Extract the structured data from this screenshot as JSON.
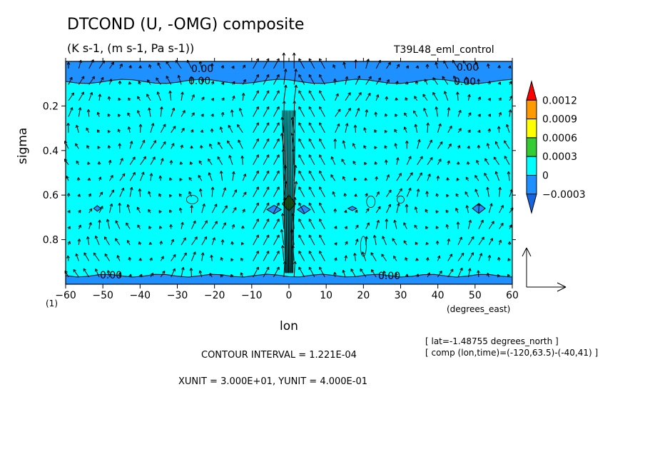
{
  "chart_data": {
    "type": "heatmap",
    "title": "DTCOND (U, -OMG) composite",
    "subtitle": "(K s-1, (m s-1, Pa s-1))",
    "run_name": "T39L48_eml_control",
    "xlabel": "lon",
    "x_unit": "(degrees_east)",
    "ylabel": "sigma",
    "y_unit": "(1)",
    "xlim": [
      -60,
      60
    ],
    "ylim": [
      1.0,
      0.0
    ],
    "x_ticks": [
      -60,
      -50,
      -40,
      -30,
      -20,
      -10,
      0,
      10,
      20,
      30,
      40,
      50,
      60
    ],
    "y_ticks": [
      0.2,
      0.4,
      0.6,
      0.8
    ],
    "contour_labels": [
      "0.00",
      "0.00",
      "0.00",
      "0.00",
      "0.00",
      "0.00"
    ],
    "colorbar": {
      "levels": [
        "0.0012",
        "0.0009",
        "0.0006",
        "0.0003",
        "0",
        "-0.0003"
      ],
      "colors": [
        "#ff0000",
        "#ff9900",
        "#ffff00",
        "#33cc33",
        "#00ffff",
        "#1e90ff",
        "#1565e0"
      ]
    },
    "background_color": "#00ffff",
    "negative_color": "#1e90ff",
    "info": {
      "lat": "[ lat=-1.48755 degrees_north ]",
      "comp": "[ comp (lon,time)=(-120,63.5)-(-40,41) ]",
      "contour_interval": "CONTOUR INTERVAL = 1.221E-04",
      "vector_units": "XUNIT = 3.000E+01, YUNIT = 4.000E-01"
    }
  }
}
